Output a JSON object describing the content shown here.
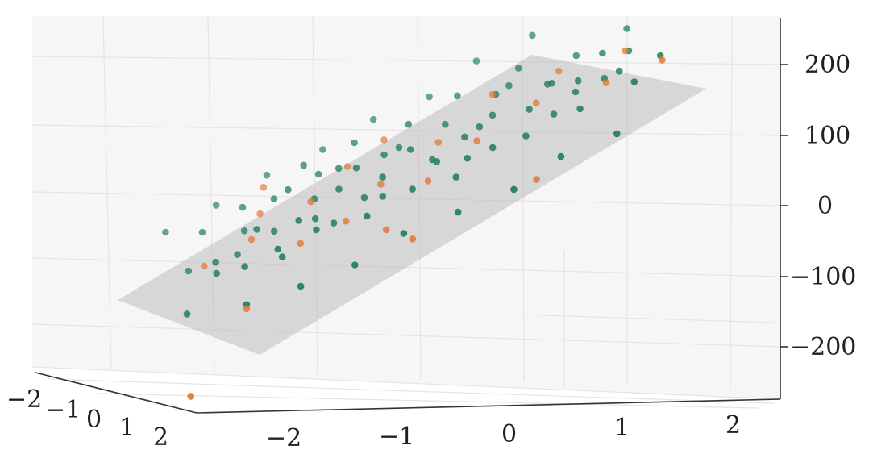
{
  "chart_data": {
    "type": "scatter",
    "projection": "3d",
    "title": "",
    "xlabel": "",
    "ylabel": "",
    "zlabel": "",
    "grid": true,
    "x_ticks": [
      "−2",
      "−1",
      "0",
      "1",
      "2"
    ],
    "y_ticks": [
      "−2",
      "−1",
      "0",
      "1",
      "2"
    ],
    "z_ticks": [
      "200",
      "100",
      "0",
      "−100",
      "−200"
    ],
    "xlim": [
      -2.6,
      2.6
    ],
    "ylim": [
      -2.6,
      2.6
    ],
    "zlim": [
      -250,
      250
    ],
    "plane": {
      "type": "fitted-plane",
      "color": "#bdbdbd",
      "opacity": 0.55
    },
    "colors": {
      "green": "#1b7a57",
      "orange": "#e07b39"
    },
    "series": [
      {
        "color_key": "green",
        "points": [
          [
            -2.3,
            0.5,
            -155
          ],
          [
            -2.1,
            -0.6,
            -110
          ],
          [
            -2.0,
            0.4,
            -90
          ],
          [
            -1.9,
            -1.0,
            -55
          ],
          [
            -1.8,
            0.8,
            -70
          ],
          [
            -1.7,
            -0.2,
            -75
          ],
          [
            -1.6,
            0.3,
            -20
          ],
          [
            -1.55,
            -0.8,
            -10
          ],
          [
            -1.5,
            0.9,
            -40
          ],
          [
            -1.4,
            0.1,
            -30
          ],
          [
            -1.3,
            -0.5,
            10
          ],
          [
            -1.25,
            0.6,
            0
          ],
          [
            -1.2,
            -0.3,
            30
          ],
          [
            -1.1,
            0.7,
            -15
          ],
          [
            -1.0,
            0.0,
            20
          ],
          [
            -0.95,
            -0.9,
            55
          ],
          [
            -0.9,
            0.5,
            -10
          ],
          [
            -0.8,
            0.2,
            40
          ],
          [
            -0.7,
            -0.4,
            60
          ],
          [
            -0.65,
            0.9,
            10
          ],
          [
            -0.6,
            0.0,
            70
          ],
          [
            -0.5,
            -0.7,
            95
          ],
          [
            -0.45,
            0.6,
            35
          ],
          [
            -0.4,
            0.3,
            60
          ],
          [
            -0.3,
            -0.2,
            85
          ],
          [
            -0.2,
            0.8,
            50
          ],
          [
            -0.1,
            0.1,
            100
          ],
          [
            0.0,
            -0.6,
            125
          ],
          [
            0.1,
            0.4,
            85
          ],
          [
            0.2,
            0.9,
            70
          ],
          [
            0.3,
            -0.3,
            130
          ],
          [
            0.4,
            0.2,
            120
          ],
          [
            0.5,
            -0.8,
            165
          ],
          [
            0.6,
            0.6,
            110
          ],
          [
            0.7,
            0.0,
            150
          ],
          [
            0.8,
            -0.4,
            175
          ],
          [
            0.9,
            0.7,
            130
          ],
          [
            1.0,
            0.3,
            165
          ],
          [
            1.1,
            -0.9,
            205
          ],
          [
            1.2,
            0.5,
            160
          ],
          [
            1.3,
            -0.2,
            195
          ],
          [
            1.4,
            0.8,
            175
          ],
          [
            1.5,
            0.1,
            205
          ],
          [
            1.6,
            -0.6,
            230
          ],
          [
            1.7,
            0.4,
            215
          ],
          [
            1.8,
            -0.3,
            240
          ],
          [
            1.9,
            0.9,
            220
          ],
          [
            2.0,
            0.0,
            250
          ],
          [
            2.1,
            -0.7,
            270
          ],
          [
            2.2,
            0.6,
            255
          ],
          [
            -1.85,
            1.2,
            -125
          ],
          [
            -1.35,
            1.3,
            -95
          ],
          [
            -0.85,
            1.4,
            -60
          ],
          [
            -0.35,
            1.2,
            -15
          ],
          [
            0.15,
            1.3,
            20
          ],
          [
            0.65,
            1.5,
            60
          ],
          [
            1.15,
            1.2,
            105
          ],
          [
            1.65,
            1.4,
            145
          ],
          [
            -2.2,
            -1.3,
            -60
          ],
          [
            -1.7,
            -1.4,
            -20
          ],
          [
            -1.2,
            -1.5,
            25
          ],
          [
            -0.7,
            -1.3,
            70
          ],
          [
            -0.2,
            -1.4,
            115
          ],
          [
            0.3,
            -1.2,
            155
          ],
          [
            0.8,
            -1.5,
            205
          ],
          [
            1.3,
            -1.3,
            250
          ],
          [
            -1.05,
            0.35,
            -5
          ],
          [
            -0.15,
            -0.25,
            95
          ],
          [
            0.55,
            0.15,
            135
          ],
          [
            1.45,
            0.25,
            190
          ],
          [
            -1.6,
            -0.4,
            -40
          ],
          [
            -0.6,
            0.45,
            30
          ],
          [
            0.35,
            0.65,
            95
          ],
          [
            1.25,
            -0.15,
            195
          ],
          [
            -1.95,
            0.05,
            -80
          ],
          [
            -0.85,
            -0.65,
            45
          ],
          [
            0.05,
            0.45,
            90
          ],
          [
            0.95,
            -0.55,
            185
          ],
          [
            1.85,
            0.35,
            225
          ],
          [
            -1.45,
            0.85,
            -55
          ]
        ]
      },
      {
        "color_key": "orange",
        "points": [
          [
            -2.0,
            -0.3,
            -95
          ],
          [
            -1.8,
            0.9,
            -140
          ],
          [
            -1.6,
            0.0,
            -45
          ],
          [
            -1.4,
            -0.7,
            -20
          ],
          [
            -1.2,
            0.4,
            -45
          ],
          [
            -1.0,
            -0.2,
            10
          ],
          [
            -0.8,
            0.6,
            -5
          ],
          [
            -0.6,
            -0.5,
            60
          ],
          [
            -0.4,
            0.2,
            45
          ],
          [
            -0.2,
            -0.8,
            95
          ],
          [
            0.0,
            0.5,
            55
          ],
          [
            0.2,
            -0.1,
            105
          ],
          [
            0.5,
            0.3,
            115
          ],
          [
            0.8,
            -0.6,
            170
          ],
          [
            1.1,
            0.1,
            170
          ],
          [
            1.4,
            -0.4,
            210
          ],
          [
            1.7,
            0.5,
            210
          ],
          [
            2.0,
            -0.2,
            245
          ],
          [
            2.2,
            0.7,
            250
          ],
          [
            -0.3,
            1.4,
            -20
          ],
          [
            -1.3,
            -1.1,
            15
          ],
          [
            0.9,
            1.3,
            70
          ],
          [
            -2.5,
            1.9,
            -260
          ],
          [
            -0.5,
            1.1,
            -10
          ]
        ]
      }
    ]
  }
}
